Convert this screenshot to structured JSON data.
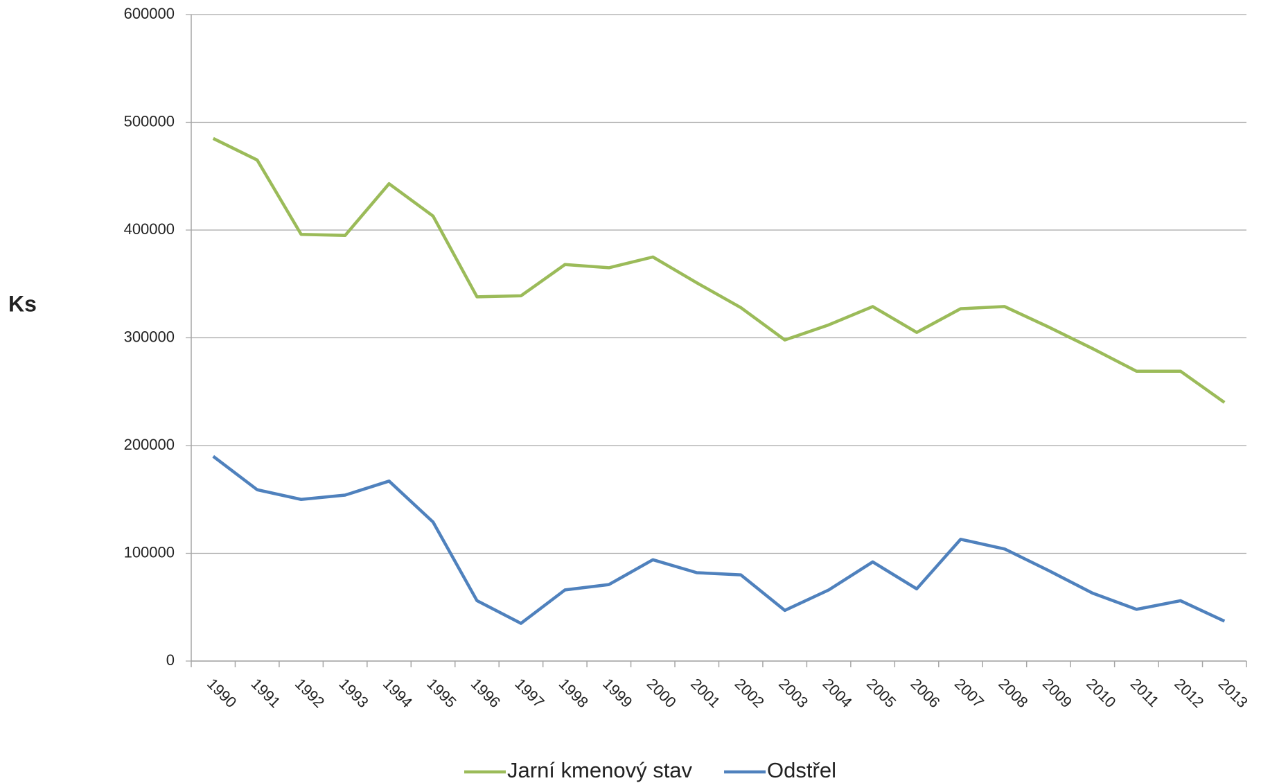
{
  "chart_data": {
    "type": "line",
    "y_label": "Ks",
    "categories": [
      "1990",
      "1991",
      "1992",
      "1993",
      "1994",
      "1995",
      "1996",
      "1997",
      "1998",
      "1999",
      "2000",
      "2001",
      "2002",
      "2003",
      "2004",
      "2005",
      "2006",
      "2007",
      "2008",
      "2009",
      "2010",
      "2011",
      "2012",
      "2013"
    ],
    "series": [
      {
        "name": "Jarní kmenový stav",
        "color": "#9bbb59",
        "values": [
          485000,
          465000,
          396000,
          395000,
          443000,
          413000,
          338000,
          339000,
          368000,
          365000,
          375000,
          351000,
          328000,
          298000,
          312000,
          329000,
          305000,
          327000,
          329000,
          310000,
          290000,
          269000,
          269000,
          240000
        ]
      },
      {
        "name": "Odstřel",
        "color": "#4f81bd",
        "values": [
          190000,
          159000,
          150000,
          154000,
          167000,
          129000,
          56000,
          35000,
          66000,
          71000,
          94000,
          82000,
          80000,
          47000,
          66000,
          92000,
          67000,
          113000,
          104000,
          84000,
          63000,
          48000,
          56000,
          37000
        ]
      }
    ],
    "ylim": [
      0,
      600000
    ],
    "yticks": [
      0,
      100000,
      200000,
      300000,
      400000,
      500000,
      600000
    ],
    "grid": true,
    "legend": "bottom"
  }
}
